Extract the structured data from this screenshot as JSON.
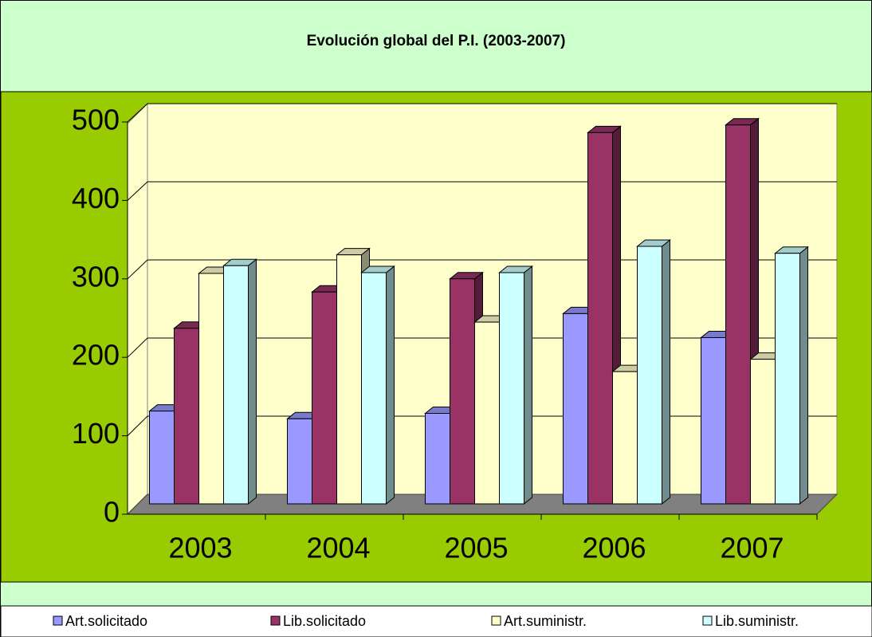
{
  "chart_data": {
    "type": "bar3d",
    "title": "Evolución  global del P.I.  (2003-2007)",
    "categories": [
      "2003",
      "2004",
      "2005",
      "2006",
      "2007"
    ],
    "series": [
      {
        "name": "Art.solicitado",
        "color": "#9999ff",
        "values": [
          120,
          110,
          117,
          246,
          215
        ]
      },
      {
        "name": "Lib.solicitado",
        "color": "#993366",
        "values": [
          227,
          274,
          291,
          480,
          490
        ]
      },
      {
        "name": "Art.suministr.",
        "color": "#ffffcc",
        "values": [
          298,
          322,
          235,
          171,
          187
        ]
      },
      {
        "name": "Lib.suministr.",
        "color": "#ccffff",
        "values": [
          308,
          299,
          299,
          333,
          324
        ]
      }
    ],
    "ylim": [
      0,
      500
    ],
    "yticks": [
      0,
      100,
      200,
      300,
      400,
      500
    ],
    "grid": true,
    "legend": "bottom"
  }
}
